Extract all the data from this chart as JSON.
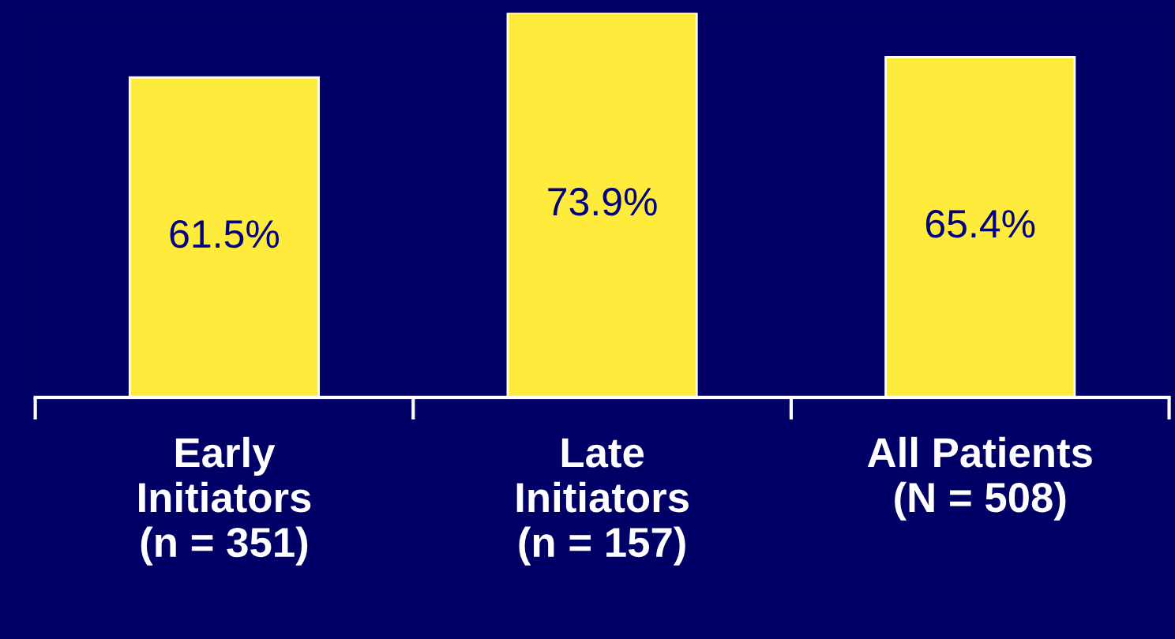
{
  "chart_data": {
    "type": "bar",
    "categories": [
      "Early\nInitiators\n(n = 351)",
      "Late\nInitiators\n(n = 157)",
      "All Patients\n(N = 508)"
    ],
    "values": [
      61.5,
      73.9,
      65.4
    ],
    "value_labels": [
      "61.5%",
      "73.9%",
      "65.4%"
    ],
    "color": "#ffeb3b",
    "grid": false
  }
}
